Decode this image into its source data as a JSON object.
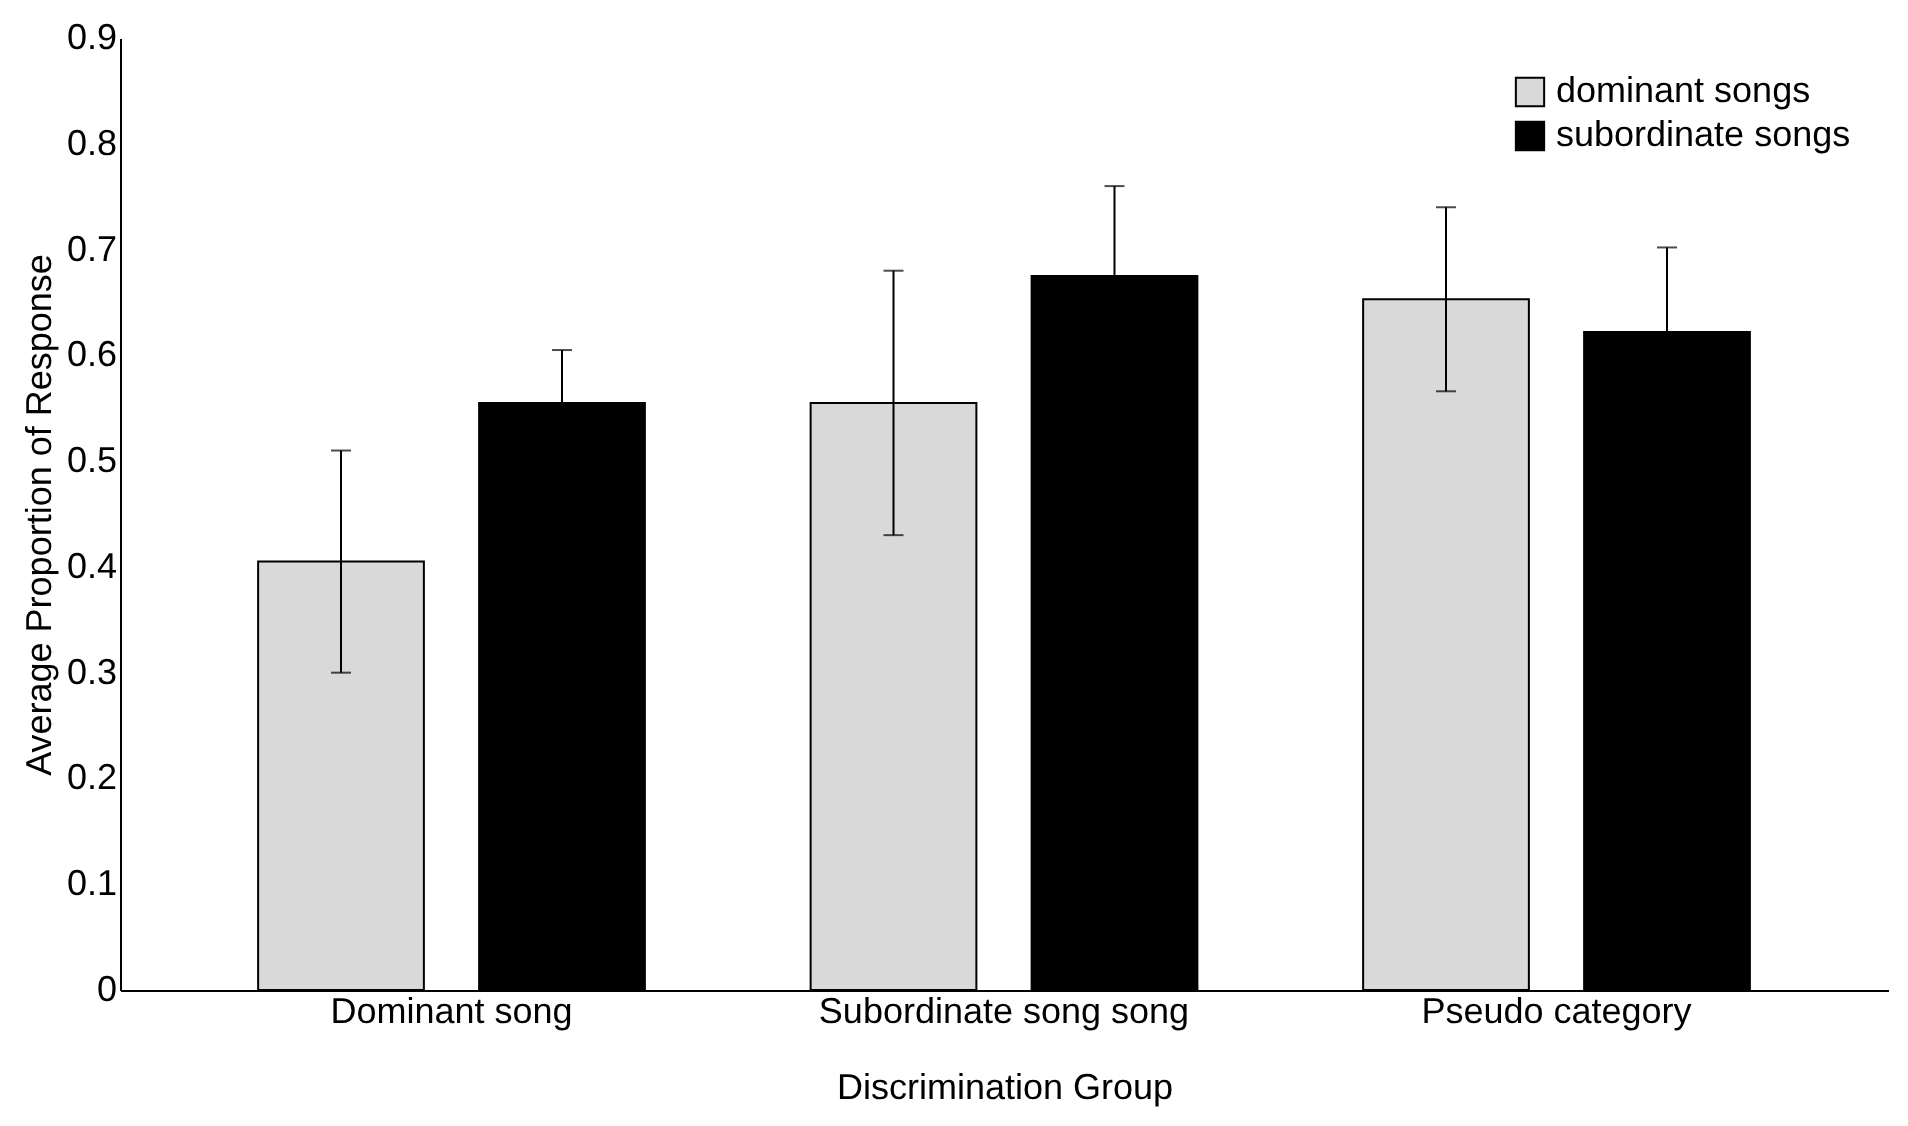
{
  "chart_data": {
    "type": "bar",
    "xlabel": "Discrimination Group",
    "ylabel": "Average Proportion of Response",
    "categories": [
      "Dominant song",
      "Subordinate song song",
      "Pseudo category"
    ],
    "series": [
      {
        "name": "dominant songs",
        "color": "#d9d9d9",
        "values": [
          0.405,
          0.555,
          0.653
        ],
        "errors": [
          0.105,
          0.125,
          0.087
        ]
      },
      {
        "name": "subordinate songs",
        "color": "#000000",
        "values": [
          0.555,
          0.675,
          0.622
        ],
        "errors": [
          0.05,
          0.085,
          0.08
        ]
      }
    ],
    "ylim": [
      0,
      0.9
    ],
    "yticks": [
      0,
      0.1,
      0.2,
      0.3,
      0.4,
      0.5,
      0.6,
      0.7,
      0.8,
      0.9
    ],
    "grid": false,
    "legend": "top right"
  }
}
